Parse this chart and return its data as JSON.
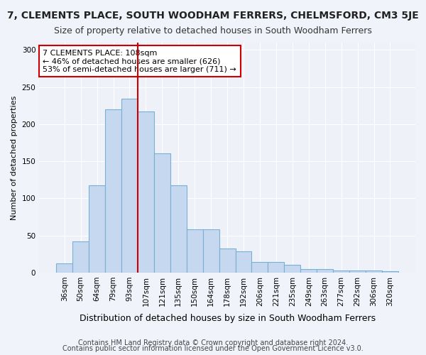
{
  "title": "7, CLEMENTS PLACE, SOUTH WOODHAM FERRERS, CHELMSFORD, CM3 5JE",
  "subtitle": "Size of property relative to detached houses in South Woodham Ferrers",
  "xlabel": "Distribution of detached houses by size in South Woodham Ferrers",
  "ylabel": "Number of detached properties",
  "categories": [
    "36sqm",
    "50sqm",
    "64sqm",
    "79sqm",
    "93sqm",
    "107sqm",
    "121sqm",
    "135sqm",
    "150sqm",
    "164sqm",
    "178sqm",
    "192sqm",
    "206sqm",
    "221sqm",
    "235sqm",
    "249sqm",
    "263sqm",
    "277sqm",
    "292sqm",
    "306sqm",
    "320sqm"
  ],
  "values": [
    12,
    42,
    118,
    220,
    234,
    217,
    161,
    118,
    58,
    58,
    32,
    29,
    14,
    14,
    10,
    5,
    5,
    3,
    3,
    3,
    2
  ],
  "bar_color": "#c5d8f0",
  "bar_edge_color": "#7aafd4",
  "vline_color": "#cc0000",
  "annotation_text": "7 CLEMENTS PLACE: 108sqm\n← 46% of detached houses are smaller (626)\n53% of semi-detached houses are larger (711) →",
  "annotation_box_color": "#ffffff",
  "annotation_box_edge_color": "#cc0000",
  "ylim": [
    0,
    310
  ],
  "yticks": [
    0,
    50,
    100,
    150,
    200,
    250,
    300
  ],
  "footer1": "Contains HM Land Registry data © Crown copyright and database right 2024.",
  "footer2": "Contains public sector information licensed under the Open Government Licence v3.0.",
  "bg_color": "#f0f4fa",
  "plot_bg_color": "#eef2f8",
  "grid_color": "#ffffff",
  "title_fontsize": 10,
  "subtitle_fontsize": 9,
  "xlabel_fontsize": 9,
  "ylabel_fontsize": 8,
  "tick_fontsize": 7.5,
  "annotation_fontsize": 8,
  "footer_fontsize": 7
}
